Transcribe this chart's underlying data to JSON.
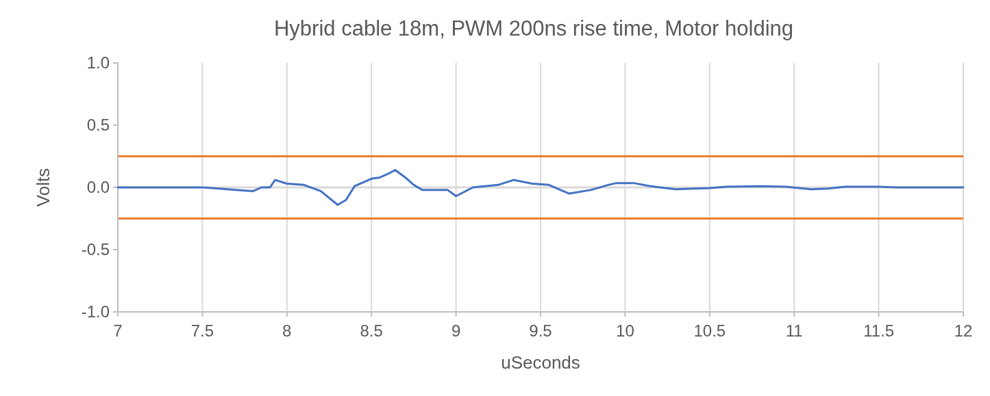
{
  "chart_data": {
    "type": "line",
    "title": "Hybrid cable 18m, PWM 200ns rise time, Motor holding",
    "xlabel": "uSeconds",
    "ylabel": "Volts",
    "xlim": [
      7,
      12
    ],
    "xticks": [
      7,
      7.5,
      8,
      8.5,
      9,
      9.5,
      10,
      10.5,
      11,
      11.5,
      12
    ],
    "ylim": [
      -1,
      1
    ],
    "yticks": [
      {
        "value": -1,
        "label": "-1.0"
      },
      {
        "value": -0.5,
        "label": "-0.5"
      },
      {
        "value": 0,
        "label": "0.0"
      },
      {
        "value": 0.5,
        "label": "0.5"
      },
      {
        "value": 1,
        "label": "1.0"
      }
    ],
    "grid": "x",
    "marker": "none",
    "line_style": "solid",
    "ref_lines": [
      {
        "axis": "y",
        "value": 0,
        "color": "#d9d9d9"
      },
      {
        "axis": "y",
        "value": 0.25,
        "color": "#ed7d31"
      },
      {
        "axis": "y",
        "value": -0.25,
        "color": "#ed7d31"
      }
    ],
    "series": [
      {
        "color": "#4472c4",
        "x": [
          7,
          7.5,
          7.6,
          7.7,
          7.8,
          7.85,
          7.9,
          7.93,
          8.0,
          8.1,
          8.2,
          8.3,
          8.35,
          8.4,
          8.5,
          8.55,
          8.6,
          8.64,
          8.7,
          8.75,
          8.8,
          8.95,
          9.0,
          9.1,
          9.25,
          9.34,
          9.45,
          9.55,
          9.6,
          9.67,
          9.8,
          9.9,
          9.95,
          10.05,
          10.15,
          10.3,
          10.5,
          10.6,
          10.8,
          10.95,
          11.1,
          11.2,
          11.3,
          11.5,
          11.6,
          12
        ],
        "values": [
          0,
          0,
          -0.01,
          -0.02,
          -0.03,
          0,
          0,
          0.06,
          0.03,
          0.02,
          -0.03,
          -0.14,
          -0.1,
          0.01,
          0.07,
          0.08,
          0.11,
          0.14,
          0.08,
          0.02,
          -0.02,
          -0.02,
          -0.07,
          0,
          0.02,
          0.06,
          0.03,
          0.02,
          -0.01,
          -0.05,
          -0.02,
          0.02,
          0.035,
          0.035,
          0.01,
          -0.015,
          -0.005,
          0.005,
          0.01,
          0.005,
          -0.015,
          -0.01,
          0.005,
          0.005,
          0,
          0
        ]
      }
    ]
  }
}
